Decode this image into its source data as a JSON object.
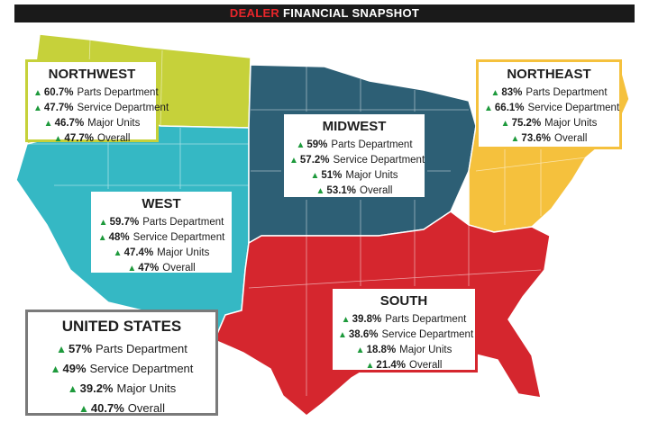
{
  "header": {
    "title_red": "DEALER",
    "title_white": "FINANCIAL SNAPSHOT"
  },
  "icons": {
    "arrow": "up-triangle-icon"
  },
  "colors": {
    "northwest": "#c6d13a",
    "west": "#35b8c4",
    "midwest": "#2d5f75",
    "northeast": "#f5c13d",
    "south": "#d5262e",
    "arrow": "#1e9a3c"
  },
  "regions": {
    "northwest": {
      "name": "NORTHWEST",
      "rows": [
        {
          "pct": "60.7%",
          "label": "Parts Department"
        },
        {
          "pct": "47.7%",
          "label": "Service Department"
        },
        {
          "pct": "46.7%",
          "label": "Major Units"
        },
        {
          "pct": "47.7%",
          "label": "Overall"
        }
      ]
    },
    "west": {
      "name": "WEST",
      "rows": [
        {
          "pct": "59.7%",
          "label": "Parts Department"
        },
        {
          "pct": "48%",
          "label": "Service Department"
        },
        {
          "pct": "47.4%",
          "label": "Major Units"
        },
        {
          "pct": "47%",
          "label": "Overall"
        }
      ]
    },
    "midwest": {
      "name": "MIDWEST",
      "rows": [
        {
          "pct": "59%",
          "label": "Parts Department"
        },
        {
          "pct": "57.2%",
          "label": "Service Department"
        },
        {
          "pct": "51%",
          "label": "Major Units"
        },
        {
          "pct": "53.1%",
          "label": "Overall"
        }
      ]
    },
    "northeast": {
      "name": "NORTHEAST",
      "rows": [
        {
          "pct": "83%",
          "label": "Parts Department"
        },
        {
          "pct": "66.1%",
          "label": "Service Department"
        },
        {
          "pct": "75.2%",
          "label": "Major Units"
        },
        {
          "pct": "73.6%",
          "label": "Overall"
        }
      ]
    },
    "south": {
      "name": "SOUTH",
      "rows": [
        {
          "pct": "39.8%",
          "label": "Parts Department"
        },
        {
          "pct": "38.6%",
          "label": "Service Department"
        },
        {
          "pct": "18.8%",
          "label": "Major Units"
        },
        {
          "pct": "21.4%",
          "label": "Overall"
        }
      ]
    },
    "us": {
      "name": "UNITED STATES",
      "rows": [
        {
          "pct": "57%",
          "label": "Parts Department"
        },
        {
          "pct": "49%",
          "label": "Service Department"
        },
        {
          "pct": "39.2%",
          "label": "Major Units"
        },
        {
          "pct": "40.7%",
          "label": "Overall"
        }
      ]
    }
  }
}
